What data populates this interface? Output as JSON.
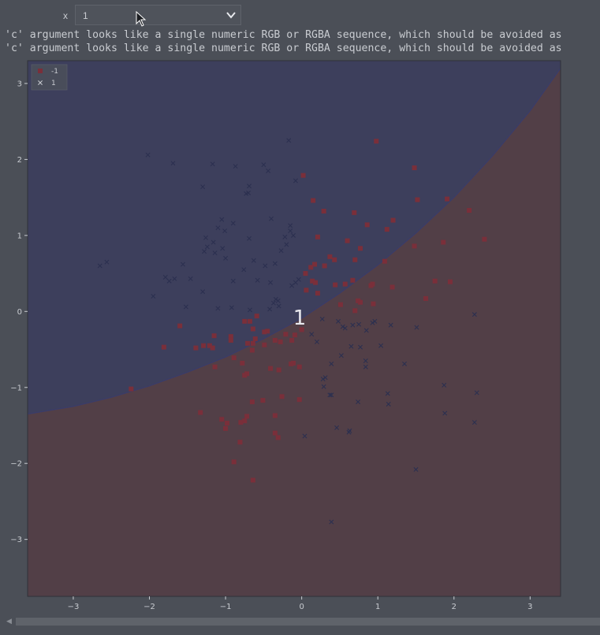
{
  "widget": {
    "label": "x",
    "selected": "1"
  },
  "warnings": [
    "'c' argument looks like a single numeric RGB or RGBA sequence, which should be avoided as",
    "'c' argument looks like a single numeric RGB or RGBA sequence, which should be avoided as"
  ],
  "chart_data": {
    "type": "scatter",
    "title": "",
    "xlabel": "",
    "ylabel": "",
    "xlim": [
      -3.6,
      3.4
    ],
    "ylim": [
      -3.75,
      3.3
    ],
    "xticks": [
      -3,
      -2,
      -1,
      0,
      1,
      2,
      3
    ],
    "yticks": [
      -3,
      -2,
      -1,
      0,
      1,
      2,
      3
    ],
    "grid": false,
    "legend_position": "top-left",
    "center_label": "1",
    "colors": {
      "background": "#4b4f57",
      "region_neg": "#523f47",
      "region_pos": "#3d3f5c",
      "marker_neg": "#7a2f3a",
      "marker_pos": "#2c3050",
      "boundary": "#3a3c6a"
    },
    "decision_boundary": {
      "x": [
        -3.6,
        -3.0,
        -2.5,
        -2.0,
        -1.5,
        -1.0,
        -0.5,
        0.0,
        0.5,
        1.0,
        1.5,
        2.0,
        2.5,
        3.0,
        3.4
      ],
      "y": [
        -1.35,
        -1.25,
        -1.13,
        -0.98,
        -0.8,
        -0.6,
        -0.36,
        -0.09,
        0.24,
        0.61,
        1.03,
        1.5,
        2.04,
        2.64,
        3.2
      ]
    },
    "series": [
      {
        "name": "-1",
        "marker": "square",
        "points": [
          [
            0.98,
            2.24
          ],
          [
            0.02,
            1.79
          ],
          [
            1.48,
            1.89
          ],
          [
            0.15,
            1.46
          ],
          [
            1.52,
            1.47
          ],
          [
            1.91,
            1.48
          ],
          [
            0.29,
            1.32
          ],
          [
            0.69,
            1.3
          ],
          [
            2.2,
            1.33
          ],
          [
            1.2,
            1.2
          ],
          [
            0.86,
            1.14
          ],
          [
            1.12,
            1.08
          ],
          [
            0.21,
            0.98
          ],
          [
            0.6,
            0.93
          ],
          [
            1.86,
            0.91
          ],
          [
            2.4,
            0.95
          ],
          [
            0.77,
            0.83
          ],
          [
            1.48,
            0.86
          ],
          [
            0.37,
            0.72
          ],
          [
            0.43,
            0.68
          ],
          [
            0.7,
            0.68
          ],
          [
            1.09,
            0.66
          ],
          [
            0.17,
            0.62
          ],
          [
            0.12,
            0.58
          ],
          [
            0.3,
            0.6
          ],
          [
            0.05,
            0.5
          ],
          [
            0.14,
            0.4
          ],
          [
            0.18,
            0.38
          ],
          [
            0.67,
            0.41
          ],
          [
            0.44,
            0.35
          ],
          [
            0.57,
            0.36
          ],
          [
            0.91,
            0.34
          ],
          [
            0.93,
            0.36
          ],
          [
            1.19,
            0.32
          ],
          [
            1.75,
            0.4
          ],
          [
            1.95,
            0.39
          ],
          [
            1.63,
            0.17
          ],
          [
            0.74,
            0.14
          ],
          [
            0.77,
            0.12
          ],
          [
            0.94,
            0.1
          ],
          [
            0.51,
            0.09
          ],
          [
            0.7,
            0.01
          ],
          [
            0.06,
            0.28
          ],
          [
            0.21,
            0.24
          ],
          [
            -0.59,
            -0.06
          ],
          [
            -0.68,
            -0.13
          ],
          [
            -0.75,
            -0.13
          ],
          [
            -0.64,
            -0.23
          ],
          [
            -0.45,
            -0.26
          ],
          [
            -1.6,
            -0.19
          ],
          [
            -1.15,
            -0.32
          ],
          [
            -0.93,
            -0.33
          ],
          [
            -0.21,
            -0.3
          ],
          [
            -0.09,
            -0.31
          ],
          [
            0.0,
            -0.24
          ],
          [
            -0.49,
            -0.27
          ],
          [
            -0.71,
            -0.42
          ],
          [
            -0.61,
            -0.36
          ],
          [
            -0.64,
            -0.42
          ],
          [
            -0.65,
            -0.51
          ],
          [
            -0.49,
            -0.44
          ],
          [
            -0.35,
            -0.38
          ],
          [
            -0.28,
            -0.4
          ],
          [
            -0.13,
            -0.38
          ],
          [
            -1.21,
            -0.45
          ],
          [
            -1.29,
            -0.45
          ],
          [
            -1.39,
            -0.48
          ],
          [
            -1.17,
            -0.48
          ],
          [
            -1.81,
            -0.47
          ],
          [
            -0.89,
            -0.61
          ],
          [
            -0.93,
            -0.38
          ],
          [
            -0.78,
            -0.68
          ],
          [
            -0.72,
            -0.82
          ],
          [
            -0.75,
            -0.84
          ],
          [
            -1.14,
            -0.73
          ],
          [
            -0.41,
            -0.75
          ],
          [
            -0.3,
            -0.77
          ],
          [
            -0.11,
            -0.68
          ],
          [
            -0.14,
            -0.69
          ],
          [
            -0.03,
            -0.73
          ],
          [
            -2.24,
            -1.02
          ],
          [
            -0.65,
            -1.19
          ],
          [
            -0.51,
            -1.17
          ],
          [
            -0.26,
            -1.12
          ],
          [
            -0.03,
            -1.16
          ],
          [
            -1.33,
            -1.33
          ],
          [
            -1.05,
            -1.42
          ],
          [
            -0.98,
            -1.47
          ],
          [
            -1.0,
            -1.54
          ],
          [
            -0.8,
            -1.46
          ],
          [
            -0.75,
            -1.44
          ],
          [
            -0.72,
            -1.38
          ],
          [
            -0.35,
            -1.37
          ],
          [
            -0.35,
            -1.6
          ],
          [
            -0.31,
            -1.66
          ],
          [
            -0.81,
            -1.72
          ],
          [
            -0.89,
            -1.98
          ],
          [
            -0.64,
            -2.22
          ]
        ]
      },
      {
        "name": "1",
        "marker": "x",
        "points": [
          [
            -2.02,
            2.06
          ],
          [
            -1.69,
            1.95
          ],
          [
            -0.17,
            2.25
          ],
          [
            -1.17,
            1.94
          ],
          [
            -0.87,
            1.91
          ],
          [
            -0.5,
            1.93
          ],
          [
            -0.44,
            1.85
          ],
          [
            -0.08,
            1.72
          ],
          [
            -1.3,
            1.64
          ],
          [
            -0.69,
            1.65
          ],
          [
            -0.73,
            1.55
          ],
          [
            -0.7,
            1.56
          ],
          [
            -1.05,
            1.21
          ],
          [
            -0.4,
            1.22
          ],
          [
            -1.1,
            1.1
          ],
          [
            -0.9,
            1.16
          ],
          [
            -0.15,
            1.13
          ],
          [
            -0.15,
            1.06
          ],
          [
            -0.11,
            1.0
          ],
          [
            -1.26,
            0.97
          ],
          [
            -1.01,
            1.06
          ],
          [
            -0.22,
            0.98
          ],
          [
            -1.16,
            0.91
          ],
          [
            -1.24,
            0.85
          ],
          [
            -1.04,
            0.83
          ],
          [
            -0.69,
            0.96
          ],
          [
            -1.28,
            0.79
          ],
          [
            -0.27,
            0.8
          ],
          [
            -1.14,
            0.77
          ],
          [
            -1.0,
            0.7
          ],
          [
            -0.2,
            0.88
          ],
          [
            -0.63,
            0.67
          ],
          [
            -2.65,
            0.6
          ],
          [
            -2.56,
            0.65
          ],
          [
            -1.56,
            0.62
          ],
          [
            -0.48,
            0.6
          ],
          [
            -0.76,
            0.55
          ],
          [
            -0.35,
            0.63
          ],
          [
            -1.79,
            0.45
          ],
          [
            -1.67,
            0.43
          ],
          [
            -1.46,
            0.43
          ],
          [
            -1.74,
            0.4
          ],
          [
            -0.58,
            0.41
          ],
          [
            -0.41,
            0.38
          ],
          [
            -0.04,
            0.42
          ],
          [
            -0.08,
            0.38
          ],
          [
            -0.9,
            0.4
          ],
          [
            -0.13,
            0.34
          ],
          [
            -1.3,
            0.26
          ],
          [
            -1.95,
            0.2
          ],
          [
            -0.34,
            0.16
          ],
          [
            -0.31,
            0.14
          ],
          [
            -0.37,
            0.11
          ],
          [
            -0.3,
            0.07
          ],
          [
            -0.42,
            0.03
          ],
          [
            -1.52,
            0.06
          ],
          [
            -1.1,
            0.04
          ],
          [
            -0.92,
            0.05
          ],
          [
            -0.68,
            0.02
          ],
          [
            0.27,
            -0.1
          ],
          [
            0.48,
            -0.13
          ],
          [
            0.54,
            -0.2
          ],
          [
            0.57,
            -0.22
          ],
          [
            0.67,
            -0.18
          ],
          [
            0.75,
            -0.17
          ],
          [
            0.93,
            -0.15
          ],
          [
            0.85,
            -0.25
          ],
          [
            0.96,
            -0.13
          ],
          [
            1.17,
            -0.18
          ],
          [
            1.51,
            -0.21
          ],
          [
            2.27,
            -0.04
          ],
          [
            0.13,
            -0.3
          ],
          [
            0.2,
            -0.4
          ],
          [
            0.65,
            -0.46
          ],
          [
            0.77,
            -0.47
          ],
          [
            0.52,
            -0.58
          ],
          [
            0.84,
            -0.65
          ],
          [
            1.04,
            -0.45
          ],
          [
            0.39,
            -0.69
          ],
          [
            0.84,
            -0.73
          ],
          [
            1.35,
            -0.69
          ],
          [
            0.28,
            -0.89
          ],
          [
            0.31,
            -0.87
          ],
          [
            0.29,
            -0.99
          ],
          [
            0.37,
            -1.1
          ],
          [
            0.39,
            -1.1
          ],
          [
            0.74,
            -1.19
          ],
          [
            1.13,
            -1.08
          ],
          [
            1.14,
            -1.22
          ],
          [
            1.87,
            -0.97
          ],
          [
            2.3,
            -1.07
          ],
          [
            1.88,
            -1.34
          ],
          [
            2.27,
            -1.46
          ],
          [
            0.46,
            -1.53
          ],
          [
            0.63,
            -1.57
          ],
          [
            0.62,
            -1.59
          ],
          [
            0.04,
            -1.64
          ],
          [
            1.5,
            -2.08
          ],
          [
            0.39,
            -2.77
          ]
        ]
      }
    ]
  }
}
